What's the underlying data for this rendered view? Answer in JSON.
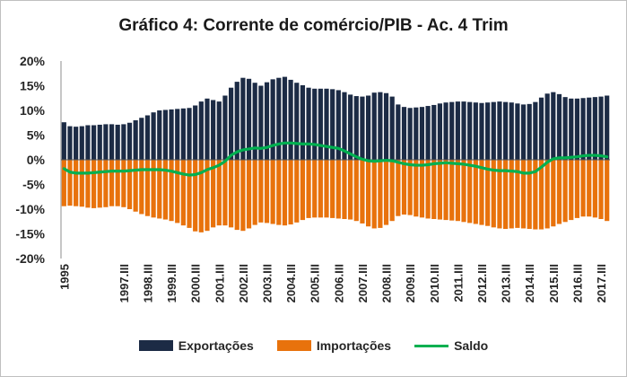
{
  "chart_data": {
    "type": "bar",
    "title": "Gráfico 4: Corrente de comércio/PIB - Ac. 4 Trim",
    "xlabel": "",
    "ylabel": "",
    "ylim": [
      -0.2,
      0.2
    ],
    "y_tick_labels": [
      "20%",
      "15%",
      "10%",
      "5%",
      "0%",
      "-5%",
      "-10%",
      "-15%",
      "-20%"
    ],
    "y_tick_values": [
      0.2,
      0.15,
      0.1,
      0.05,
      0,
      -0.05,
      -0.1,
      -0.15,
      -0.2
    ],
    "x_tick_labels": [
      {
        "index": 0,
        "label": "1995"
      },
      {
        "index": 10,
        "label": "1997.III"
      },
      {
        "index": 14,
        "label": "1998.III"
      },
      {
        "index": 18,
        "label": "1999.III"
      },
      {
        "index": 22,
        "label": "2000.III"
      },
      {
        "index": 26,
        "label": "2001.III"
      },
      {
        "index": 30,
        "label": "2002.III"
      },
      {
        "index": 34,
        "label": "2003.III"
      },
      {
        "index": 38,
        "label": "2004.III"
      },
      {
        "index": 42,
        "label": "2005.III"
      },
      {
        "index": 46,
        "label": "2006.III"
      },
      {
        "index": 50,
        "label": "2007.III"
      },
      {
        "index": 54,
        "label": "2008.III"
      },
      {
        "index": 58,
        "label": "2009.III"
      },
      {
        "index": 62,
        "label": "2010.III"
      },
      {
        "index": 66,
        "label": "2011.III"
      },
      {
        "index": 70,
        "label": "2012.III"
      },
      {
        "index": 74,
        "label": "2013.III"
      },
      {
        "index": 78,
        "label": "2014.III"
      },
      {
        "index": 82,
        "label": "2015.III"
      },
      {
        "index": 86,
        "label": "2016.III"
      },
      {
        "index": 90,
        "label": "2017.III"
      }
    ],
    "legend_position": "bottom",
    "colors": {
      "exportacoes": "#1c2b45",
      "importacoes": "#e8720c",
      "saldo": "#00b050",
      "zero_line": "#595959",
      "axis": "#8c8c8c"
    },
    "series": [
      {
        "name": "Exportações",
        "type": "bar",
        "values": [
          0.076,
          0.068,
          0.067,
          0.068,
          0.07,
          0.07,
          0.071,
          0.072,
          0.072,
          0.071,
          0.072,
          0.075,
          0.08,
          0.085,
          0.09,
          0.096,
          0.1,
          0.101,
          0.102,
          0.103,
          0.104,
          0.105,
          0.11,
          0.118,
          0.124,
          0.121,
          0.118,
          0.13,
          0.146,
          0.158,
          0.166,
          0.164,
          0.156,
          0.15,
          0.157,
          0.163,
          0.166,
          0.168,
          0.162,
          0.156,
          0.151,
          0.146,
          0.144,
          0.144,
          0.144,
          0.143,
          0.141,
          0.137,
          0.132,
          0.129,
          0.128,
          0.13,
          0.136,
          0.137,
          0.135,
          0.128,
          0.112,
          0.107,
          0.105,
          0.106,
          0.107,
          0.109,
          0.111,
          0.114,
          0.116,
          0.117,
          0.118,
          0.118,
          0.117,
          0.116,
          0.115,
          0.116,
          0.117,
          0.118,
          0.117,
          0.116,
          0.114,
          0.112,
          0.113,
          0.117,
          0.126,
          0.134,
          0.137,
          0.133,
          0.127,
          0.124,
          0.124,
          0.125,
          0.126,
          0.127,
          0.128,
          0.13
        ]
      },
      {
        "name": "Importações",
        "type": "bar",
        "values": [
          -0.094,
          -0.093,
          -0.094,
          -0.095,
          -0.097,
          -0.098,
          -0.097,
          -0.096,
          -0.094,
          -0.094,
          -0.096,
          -0.1,
          -0.105,
          -0.11,
          -0.114,
          -0.117,
          -0.119,
          -0.121,
          -0.124,
          -0.128,
          -0.133,
          -0.138,
          -0.145,
          -0.147,
          -0.144,
          -0.137,
          -0.133,
          -0.133,
          -0.137,
          -0.142,
          -0.144,
          -0.139,
          -0.132,
          -0.127,
          -0.128,
          -0.13,
          -0.132,
          -0.133,
          -0.131,
          -0.127,
          -0.122,
          -0.118,
          -0.117,
          -0.117,
          -0.117,
          -0.118,
          -0.119,
          -0.12,
          -0.121,
          -0.124,
          -0.129,
          -0.135,
          -0.139,
          -0.138,
          -0.132,
          -0.124,
          -0.114,
          -0.111,
          -0.112,
          -0.115,
          -0.117,
          -0.119,
          -0.12,
          -0.121,
          -0.122,
          -0.123,
          -0.124,
          -0.126,
          -0.128,
          -0.13,
          -0.132,
          -0.134,
          -0.137,
          -0.139,
          -0.14,
          -0.139,
          -0.138,
          -0.139,
          -0.14,
          -0.141,
          -0.141,
          -0.139,
          -0.135,
          -0.13,
          -0.126,
          -0.122,
          -0.118,
          -0.115,
          -0.115,
          -0.117,
          -0.12,
          -0.124
        ]
      },
      {
        "name": "Saldo",
        "type": "line",
        "values": [
          -0.018,
          -0.025,
          -0.027,
          -0.027,
          -0.027,
          -0.026,
          -0.025,
          -0.024,
          -0.023,
          -0.023,
          -0.023,
          -0.022,
          -0.021,
          -0.02,
          -0.02,
          -0.02,
          -0.02,
          -0.021,
          -0.023,
          -0.026,
          -0.029,
          -0.031,
          -0.03,
          -0.026,
          -0.02,
          -0.016,
          -0.011,
          -0.003,
          0.009,
          0.016,
          0.02,
          0.022,
          0.024,
          0.023,
          0.025,
          0.029,
          0.032,
          0.034,
          0.034,
          0.033,
          0.032,
          0.032,
          0.031,
          0.029,
          0.027,
          0.025,
          0.023,
          0.018,
          0.012,
          0.006,
          0.001,
          -0.002,
          -0.003,
          -0.002,
          -0.001,
          -0.002,
          -0.005,
          -0.008,
          -0.01,
          -0.011,
          -0.011,
          -0.01,
          -0.008,
          -0.007,
          -0.006,
          -0.007,
          -0.008,
          -0.009,
          -0.011,
          -0.013,
          -0.016,
          -0.019,
          -0.021,
          -0.022,
          -0.022,
          -0.023,
          -0.024,
          -0.027,
          -0.027,
          -0.024,
          -0.015,
          -0.005,
          0.002,
          0.004,
          0.004,
          0.005,
          0.006,
          0.008,
          0.009,
          0.009,
          0.008,
          0.006
        ]
      }
    ]
  }
}
